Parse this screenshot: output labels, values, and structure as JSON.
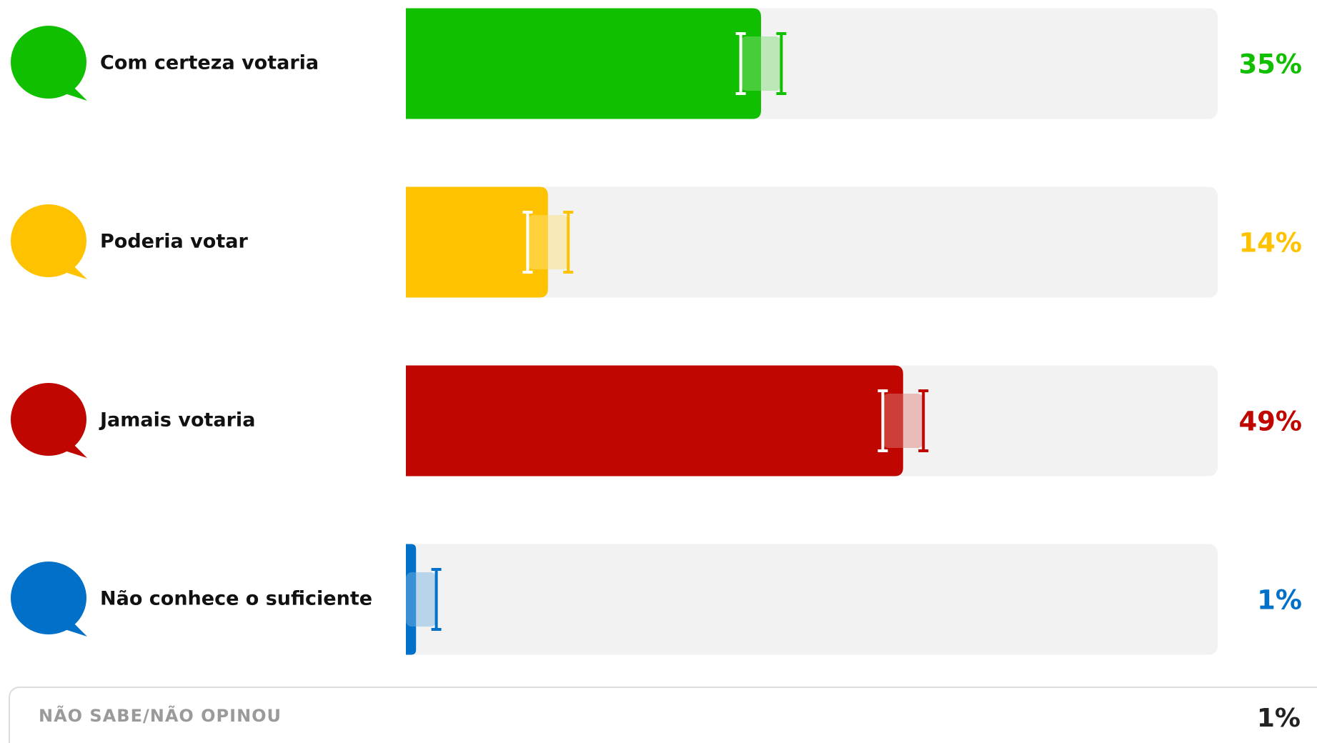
{
  "chart_data": {
    "type": "bar",
    "categories": [
      "Com certeza votaria",
      "Poderia votar",
      "Jamais votaria",
      "Não conhece o suficiente"
    ],
    "values": [
      35,
      14,
      49,
      1
    ],
    "value_labels": [
      "35%",
      "14%",
      "49%",
      "1%"
    ],
    "errors": [
      2,
      2,
      2,
      2
    ],
    "colors": [
      "#10bf00",
      "#fec200",
      "#c00600",
      "#0070c8"
    ],
    "xlim": [
      0,
      80
    ],
    "other": {
      "label": "NÃO SABE/NÃO OPINOU",
      "value": 1,
      "value_label": "1%"
    }
  }
}
